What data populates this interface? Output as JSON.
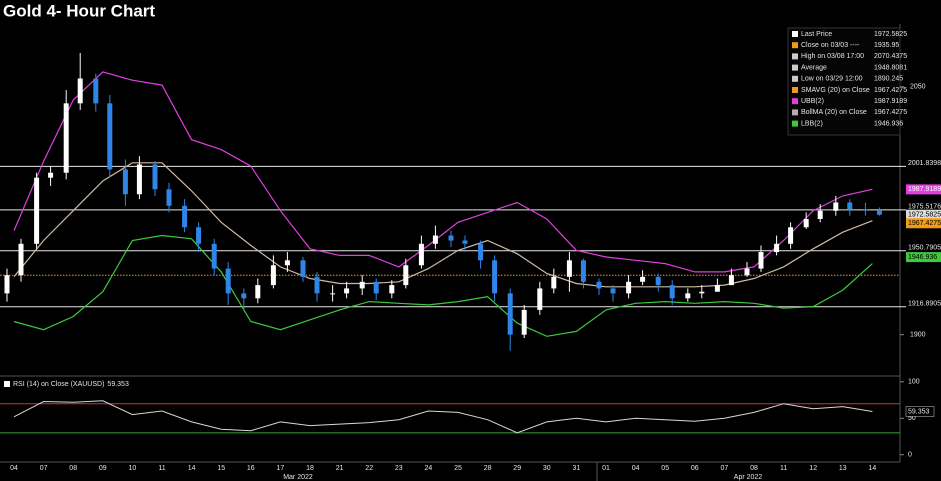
{
  "chart_data": [
    {
      "type": "candlestick",
      "title": "Gold 4- Hour Chart",
      "categories": [
        "04",
        "07",
        "08",
        "09",
        "10",
        "11",
        "14",
        "15",
        "16",
        "17",
        "18",
        "21",
        "22",
        "23",
        "24",
        "25",
        "28",
        "29",
        "30",
        "31",
        "01",
        "04",
        "05",
        "06",
        "07",
        "08",
        "11",
        "12",
        "13",
        "14"
      ],
      "month_labels": [
        "Mar 2022",
        "Apr 2022"
      ],
      "candles": {
        "up_color": "#ffffff",
        "down_color": "#2f86e8",
        "open": [
          1925,
          1936,
          1955,
          1995,
          1998,
          2040,
          2055,
          2040,
          2000,
          1985,
          2003,
          1988,
          1978,
          1965,
          1955,
          1940,
          1925,
          1922,
          1930,
          1942,
          1945,
          1935,
          1925,
          1925,
          1928,
          1932,
          1925,
          1930,
          1942,
          1955,
          1960,
          1957,
          1955,
          1945,
          1925,
          1900,
          1915,
          1928,
          1935,
          1945,
          1932,
          1928,
          1925,
          1932,
          1935,
          1930,
          1922,
          1925,
          1926,
          1930,
          1936,
          1940,
          1950,
          1955,
          1965,
          1970,
          1975,
          1980,
          1976,
          1975
        ],
        "high": [
          1940,
          1958,
          1998,
          2002,
          2048,
          2070.4375,
          2058,
          2045,
          2006,
          2008,
          2005,
          1992,
          1982,
          1968,
          1958,
          1944,
          1928,
          1934,
          1948,
          1950,
          1947,
          1938,
          1930,
          1932,
          1936,
          1934,
          1933,
          1946,
          1960,
          1966,
          1963,
          1960,
          1957,
          1948,
          1928,
          1918,
          1932,
          1940,
          1950,
          1946,
          1934,
          1930,
          1936,
          1939,
          1937,
          1933,
          1928,
          1930,
          1934,
          1940,
          1944,
          1954,
          1960,
          1968,
          1974,
          1979,
          1984,
          1982,
          1980,
          1977
        ],
        "low": [
          1920,
          1932,
          1952,
          1990,
          1994,
          2036,
          2035,
          1995,
          1978,
          1982,
          1984,
          1974,
          1962,
          1950,
          1936,
          1918,
          1915,
          1919,
          1928,
          1938,
          1932,
          1920,
          1920,
          1922,
          1924,
          1921,
          1922,
          1928,
          1940,
          1952,
          1953,
          1950,
          1940,
          1920,
          1890.245,
          1898,
          1912,
          1925,
          1926,
          1928,
          1924,
          1920,
          1922,
          1930,
          1926,
          1918,
          1920,
          1922,
          1926,
          1932,
          1935,
          1938,
          1948,
          1952,
          1964,
          1968,
          1972,
          1972,
          1972,
          1972
        ],
        "close": [
          1936,
          1955,
          1995,
          1998,
          2040,
          2055,
          2040,
          2000,
          1985,
          2003,
          1988,
          1978,
          1965,
          1955,
          1940,
          1925,
          1922,
          1930,
          1942,
          1945,
          1935,
          1925,
          1925,
          1928,
          1932,
          1925,
          1930,
          1942,
          1955,
          1960,
          1957,
          1955,
          1945,
          1925,
          1900,
          1915,
          1928,
          1935,
          1945,
          1932,
          1928,
          1925,
          1932,
          1935,
          1930,
          1922,
          1925,
          1926,
          1930,
          1936,
          1940,
          1950,
          1955,
          1965,
          1970,
          1975,
          1980,
          1976,
          1975,
          1972.5825
        ]
      },
      "series": [
        {
          "color": "#cdbba3",
          "values": [
            1935,
            1957,
            1975,
            1993,
            2004,
            2004,
            1987,
            1968,
            1954,
            1941,
            1934,
            1931,
            1931,
            1932,
            1940,
            1951,
            1957,
            1949,
            1937,
            1931,
            1929,
            1929,
            1929,
            1929,
            1930,
            1934,
            1941,
            1952,
            1962,
            1969
          ]
        },
        {
          "color": "#e040e0",
          "values": [
            1963,
            2005,
            2042,
            2059,
            2054,
            2051,
            2018,
            2012,
            2002,
            1975,
            1952,
            1948,
            1948,
            1941,
            1954,
            1968,
            1974,
            1980,
            1970,
            1951,
            1947,
            1945,
            1943,
            1938,
            1938,
            1941,
            1957,
            1975,
            1984,
            1988
          ]
        },
        {
          "color": "#3ec83e",
          "values": [
            1908,
            1903,
            1911,
            1926,
            1957,
            1960,
            1958,
            1938,
            1908,
            1903,
            1909,
            1915,
            1920,
            1919,
            1918,
            1920,
            1923,
            1907,
            1899,
            1902,
            1915,
            1919,
            1920,
            1919,
            1920,
            1919,
            1916,
            1917,
            1927,
            1943
          ]
        }
      ],
      "hlines": [
        2001.8398,
        1975.5176,
        1950.7905,
        1916.8905
      ],
      "hline_color": "#e8e8e8",
      "legend": [
        {
          "label": "Last Price",
          "value": 1972.5825,
          "color": "#ffffff"
        },
        {
          "label": "Close on 03/03 ----",
          "value": 1935.95,
          "color": "#f39c12"
        },
        {
          "label": "High on 03/08 17:00",
          "value": 2070.4375,
          "color": "#cccccc"
        },
        {
          "label": "Average",
          "value": 1948.8081,
          "color": "#cccccc"
        },
        {
          "label": "Low on 03/29 12:00",
          "value": 1890.245,
          "color": "#cccccc"
        },
        {
          "label": "SMAVG (20) on Close",
          "value": 1967.4275,
          "color": "#f39c12"
        },
        {
          "label": "UBB(2)",
          "value": 1987.9189,
          "color": "#e040e0"
        },
        {
          "label": "BollMA (20) on Close",
          "value": 1967.4275,
          "color": "#b0b0b0"
        },
        {
          "label": "LBB(2)",
          "value": 1946.936,
          "color": "#3ec83e"
        }
      ],
      "ylim": [
        1875,
        2088
      ],
      "yticks": [
        1900,
        2050
      ]
    },
    {
      "type": "line",
      "title": "RSI (14) on Close (XAUUSD)",
      "values": [
        52,
        73,
        72,
        74,
        55,
        60,
        45,
        35,
        33,
        45,
        40,
        42,
        44,
        48,
        60,
        58,
        48,
        30,
        45,
        50,
        45,
        50,
        48,
        46,
        50,
        58,
        70,
        63,
        66,
        59.353
      ],
      "color": "#d8d8d8",
      "hlines": [
        {
          "value": 70,
          "color": "#d83030"
        },
        {
          "value": 30,
          "color": "#2fa82f"
        }
      ],
      "ylim": [
        -10,
        108
      ],
      "yticks": [
        0,
        50,
        100
      ]
    }
  ]
}
